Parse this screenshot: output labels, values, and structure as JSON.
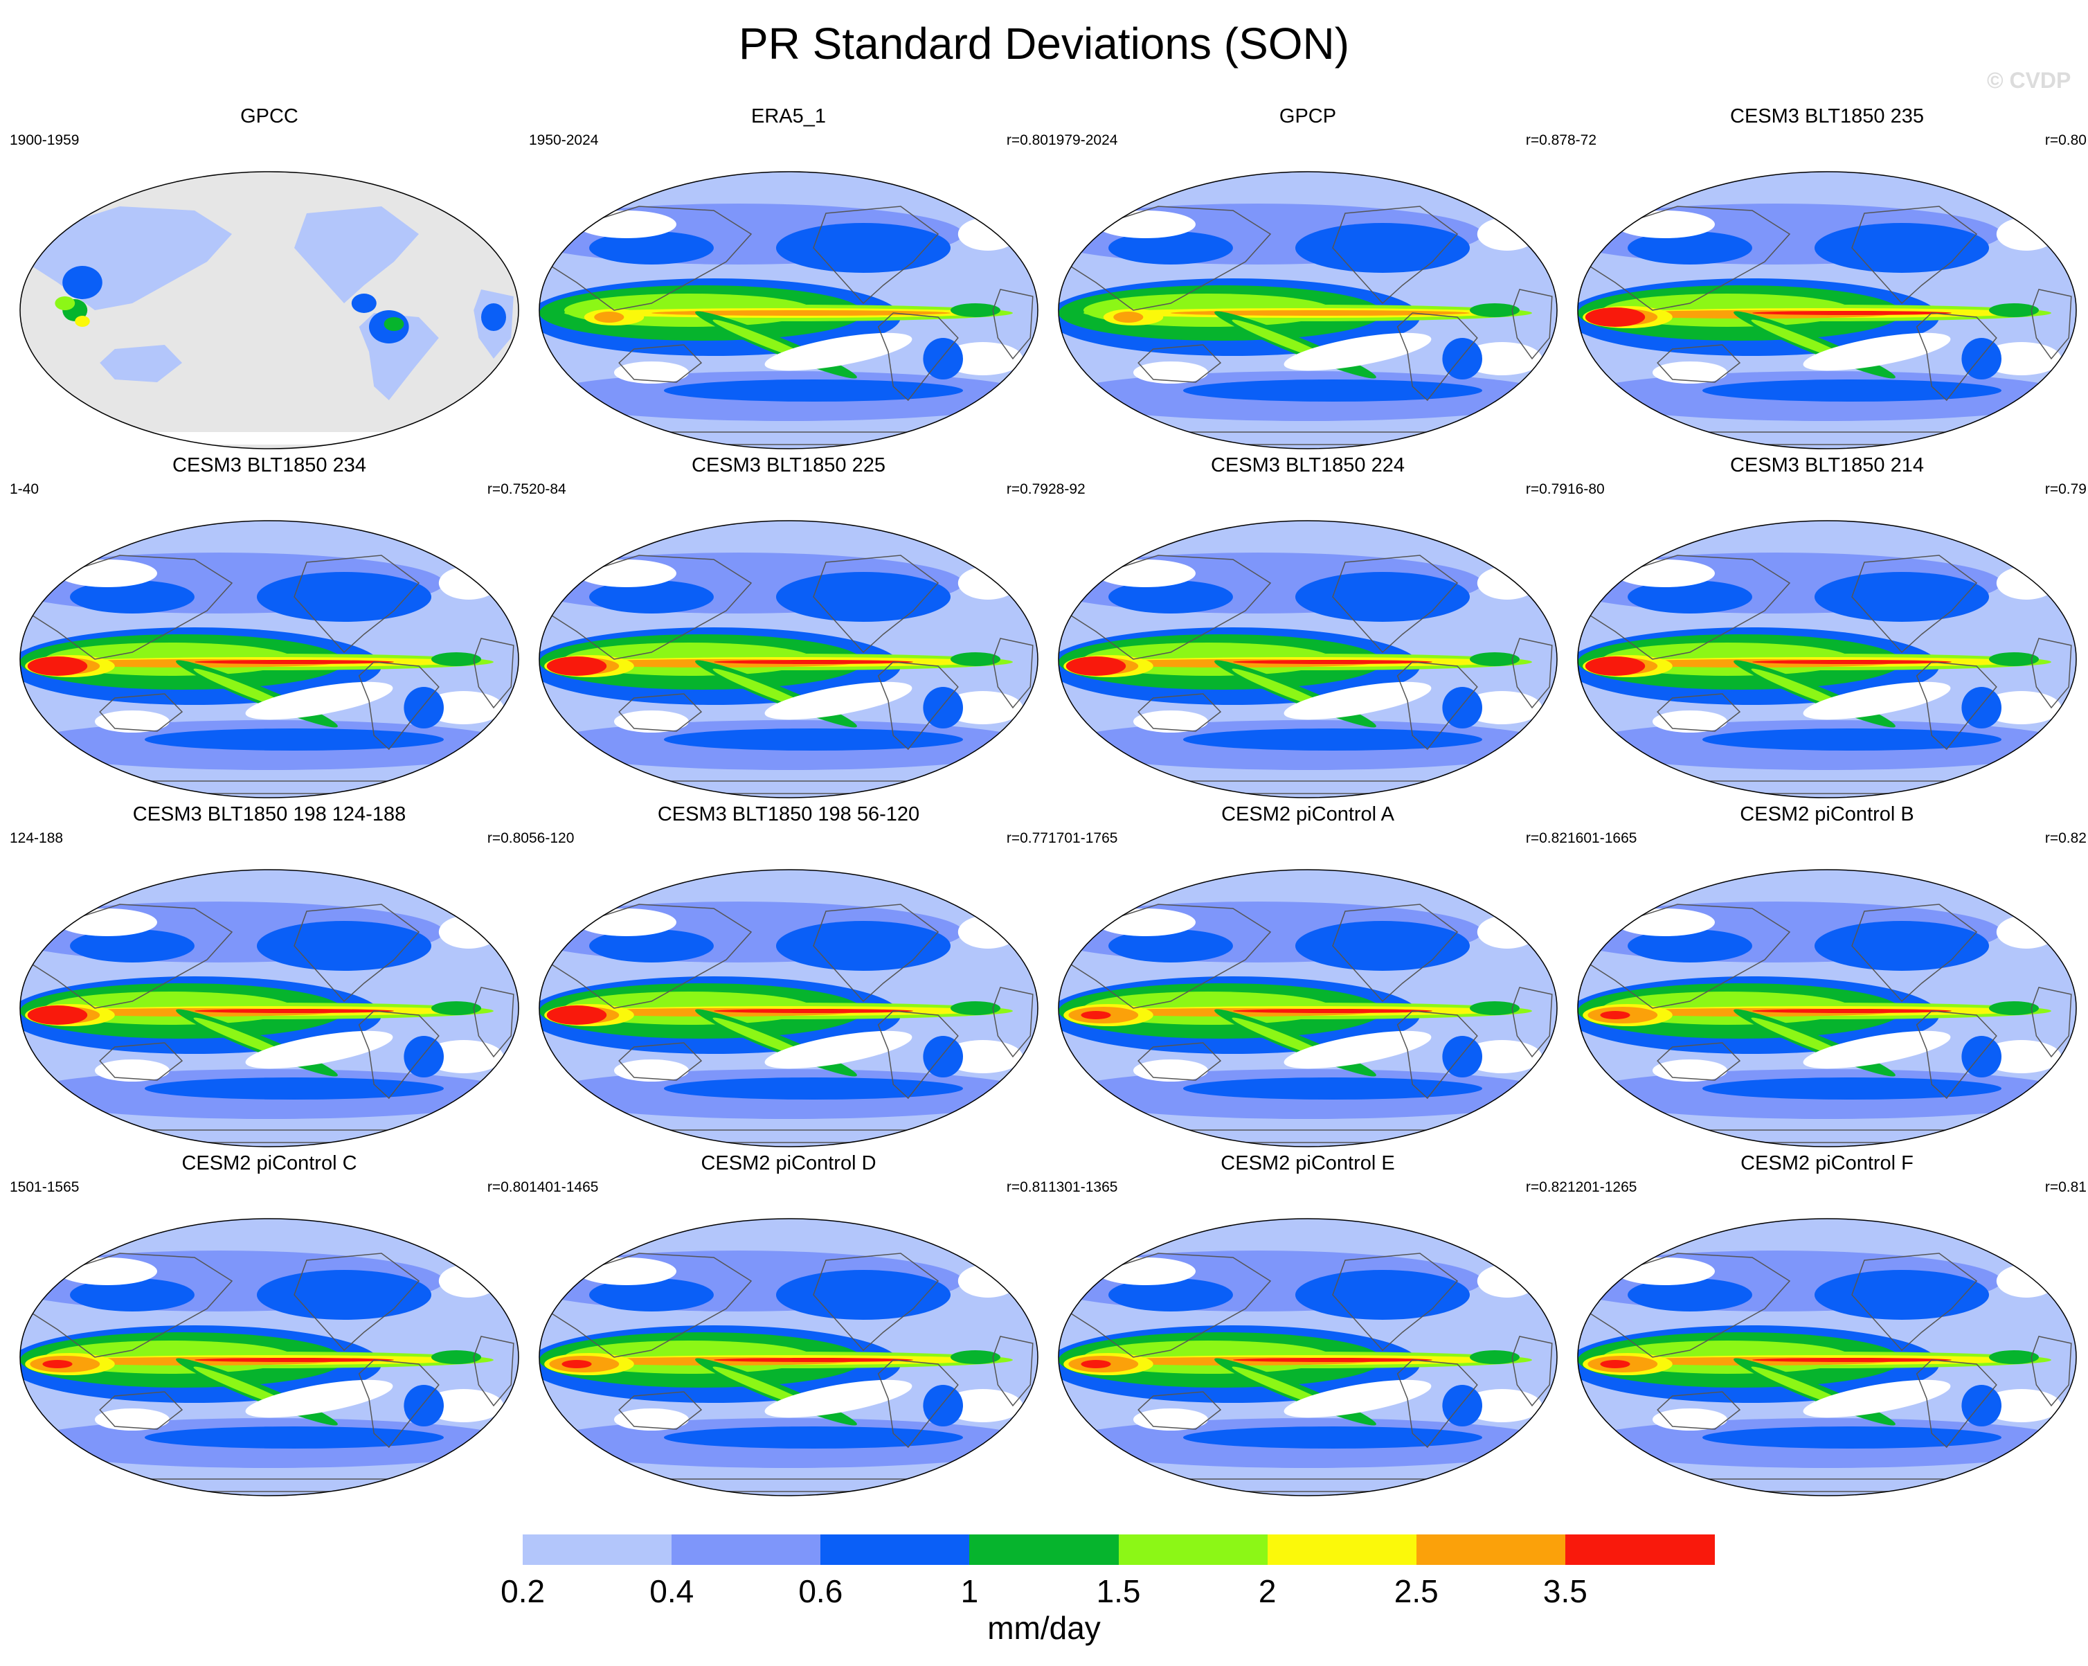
{
  "title": "PR Standard Deviations (SON)",
  "watermark": "© CVDP",
  "units": "mm/day",
  "colorbar": {
    "levels": [
      "0.2",
      "0.4",
      "0.6",
      "1",
      "1.5",
      "2",
      "2.5",
      "3.5"
    ],
    "colors": [
      "#ffffff",
      "#b3c6fb",
      "#7e96fa",
      "#0a5ff7",
      "#06b42d",
      "#8cf716",
      "#fbf90a",
      "#fba10a",
      "#f9190c"
    ]
  },
  "land_missing_color": "#e6e6e6",
  "panels": [
    {
      "title": "GPCC",
      "years": "1900-1959",
      "r": "",
      "style": "obs_land"
    },
    {
      "title": "ERA5_1",
      "years": "1950-2024",
      "r": "r=0.80",
      "style": "obs"
    },
    {
      "title": "GPCP",
      "years": "1979-2024",
      "r": "r=0.87",
      "style": "obs"
    },
    {
      "title": "CESM3 BLT1850 235",
      "years": "8-72",
      "r": "r=0.80",
      "style": "model_strong"
    },
    {
      "title": "CESM3 BLT1850 234",
      "years": "1-40",
      "r": "r=0.75",
      "style": "model_strong"
    },
    {
      "title": "CESM3 BLT1850 225",
      "years": "20-84",
      "r": "r=0.79",
      "style": "model_strong"
    },
    {
      "title": "CESM3 BLT1850 224",
      "years": "28-92",
      "r": "r=0.79",
      "style": "model_strong"
    },
    {
      "title": "CESM3 BLT1850 214",
      "years": "16-80",
      "r": "r=0.79",
      "style": "model_strong"
    },
    {
      "title": "CESM3 BLT1850 198 124-188",
      "years": "124-188",
      "r": "r=0.80",
      "style": "model_strong"
    },
    {
      "title": "CESM3 BLT1850 198 56-120",
      "years": "56-120",
      "r": "r=0.77",
      "style": "model_strong"
    },
    {
      "title": "CESM2 piControl A",
      "years": "1701-1765",
      "r": "r=0.82",
      "style": "model"
    },
    {
      "title": "CESM2 piControl B",
      "years": "1601-1665",
      "r": "r=0.82",
      "style": "model"
    },
    {
      "title": "CESM2 piControl C",
      "years": "1501-1565",
      "r": "r=0.80",
      "style": "model"
    },
    {
      "title": "CESM2 piControl D",
      "years": "1401-1465",
      "r": "r=0.81",
      "style": "model"
    },
    {
      "title": "CESM2 piControl E",
      "years": "1301-1365",
      "r": "r=0.82",
      "style": "model"
    },
    {
      "title": "CESM2 piControl F",
      "years": "1201-1265",
      "r": "r=0.81",
      "style": "model"
    }
  ]
}
